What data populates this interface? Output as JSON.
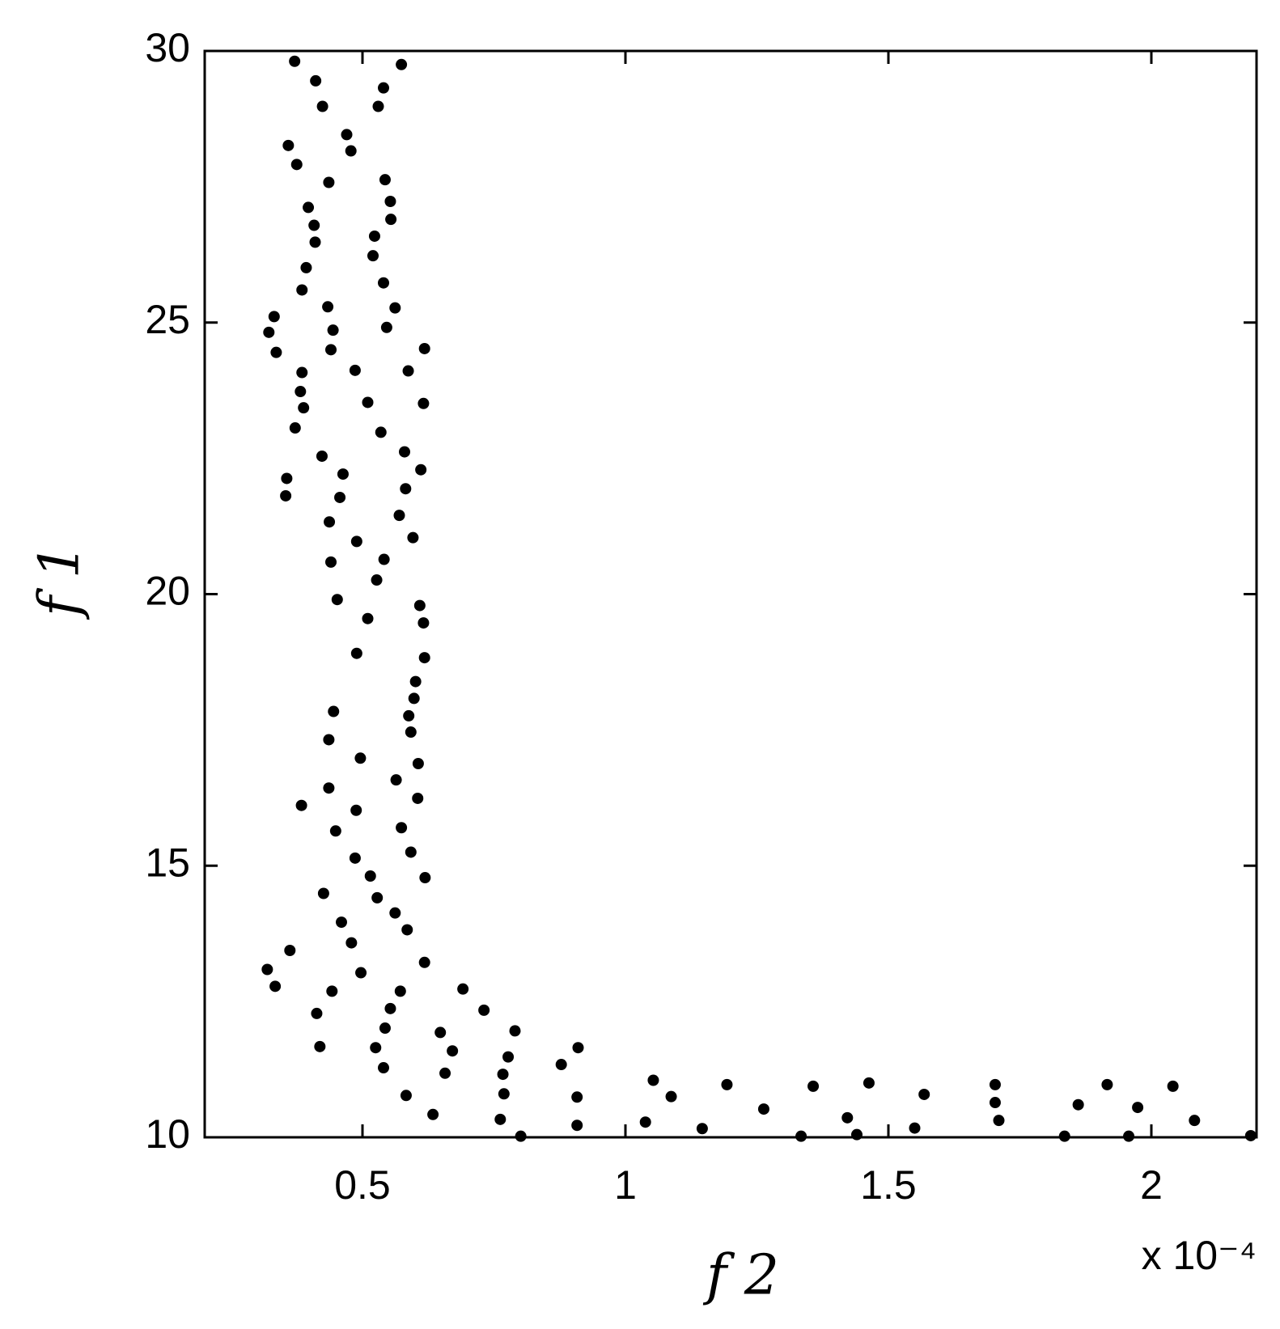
{
  "chart_data": {
    "type": "scatter",
    "x_label": "f 2",
    "y_label": "f 1",
    "annotation": "x 10⁻⁴",
    "color": "#000000",
    "xlim": [
      0.2,
      2.2
    ],
    "ylim": [
      10,
      30
    ],
    "xticks": [
      0.5,
      1,
      1.5,
      2
    ],
    "yticks": [
      10,
      15,
      20,
      25,
      30
    ],
    "x": [
      0.371,
      0.574,
      0.411,
      0.54,
      0.424,
      0.53,
      0.47,
      0.359,
      0.478,
      0.375,
      0.436,
      0.543,
      0.553,
      0.397,
      0.554,
      0.408,
      0.523,
      0.41,
      0.52,
      0.393,
      0.54,
      0.385,
      0.434,
      0.562,
      0.332,
      0.322,
      0.444,
      0.546,
      0.336,
      0.44,
      0.618,
      0.385,
      0.486,
      0.587,
      0.382,
      0.51,
      0.388,
      0.616,
      0.372,
      0.535,
      0.58,
      0.423,
      0.356,
      0.463,
      0.611,
      0.582,
      0.354,
      0.457,
      0.437,
      0.57,
      0.489,
      0.596,
      0.44,
      0.541,
      0.527,
      0.452,
      0.609,
      0.51,
      0.616,
      0.489,
      0.618,
      0.601,
      0.598,
      0.445,
      0.588,
      0.592,
      0.436,
      0.496,
      0.606,
      0.564,
      0.436,
      0.605,
      0.384,
      0.488,
      0.574,
      0.449,
      0.592,
      0.486,
      0.515,
      0.619,
      0.426,
      0.528,
      0.562,
      0.46,
      0.585,
      0.479,
      0.362,
      0.618,
      0.319,
      0.497,
      0.334,
      0.442,
      0.572,
      0.691,
      0.553,
      0.731,
      0.413,
      0.543,
      0.79,
      0.648,
      0.525,
      0.419,
      0.91,
      0.671,
      0.777,
      0.878,
      0.54,
      0.657,
      0.767,
      1.053,
      1.193,
      1.463,
      1.357,
      1.703,
      1.916,
      2.041,
      0.769,
      0.583,
      1.568,
      1.087,
      0.908,
      1.703,
      1.861,
      1.974,
      1.263,
      0.634,
      1.422,
      0.762,
      1.71,
      2.082,
      1.038,
      0.908,
      1.146,
      1.55,
      0.801,
      1.334,
      1.44,
      1.835,
      1.957,
      2.189
    ],
    "values": [
      29.81,
      29.75,
      29.45,
      29.32,
      28.98,
      28.98,
      28.46,
      28.26,
      28.16,
      27.91,
      27.58,
      27.63,
      27.23,
      27.12,
      26.9,
      26.79,
      26.59,
      26.48,
      26.23,
      26.01,
      25.73,
      25.6,
      25.29,
      25.27,
      25.11,
      24.82,
      24.86,
      24.91,
      24.45,
      24.5,
      24.52,
      24.08,
      24.12,
      24.11,
      23.73,
      23.53,
      23.43,
      23.51,
      23.06,
      22.98,
      22.62,
      22.54,
      22.13,
      22.21,
      22.29,
      21.94,
      21.81,
      21.78,
      21.33,
      21.45,
      20.97,
      21.04,
      20.59,
      20.64,
      20.26,
      19.9,
      19.79,
      19.55,
      19.47,
      18.91,
      18.83,
      18.39,
      18.08,
      17.84,
      17.76,
      17.46,
      17.32,
      16.98,
      16.88,
      16.58,
      16.43,
      16.24,
      16.11,
      16.02,
      15.7,
      15.64,
      15.25,
      15.14,
      14.81,
      14.78,
      14.49,
      14.41,
      14.13,
      13.96,
      13.82,
      13.58,
      13.44,
      13.22,
      13.09,
      13.03,
      12.78,
      12.69,
      12.69,
      12.73,
      12.37,
      12.34,
      12.28,
      12.01,
      11.96,
      11.93,
      11.65,
      11.67,
      11.65,
      11.59,
      11.48,
      11.34,
      11.28,
      11.18,
      11.16,
      11.05,
      10.97,
      11.0,
      10.94,
      10.97,
      10.97,
      10.94,
      10.8,
      10.77,
      10.79,
      10.75,
      10.74,
      10.64,
      10.6,
      10.55,
      10.52,
      10.42,
      10.36,
      10.33,
      10.31,
      10.31,
      10.28,
      10.22,
      10.16,
      10.17,
      10.02,
      10.02,
      10.05,
      10.02,
      10.02,
      10.03
    ]
  }
}
